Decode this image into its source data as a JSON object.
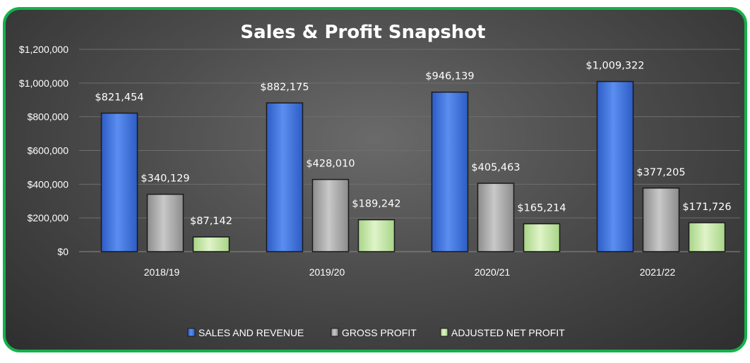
{
  "chart_data": {
    "type": "bar",
    "title": "Sales & Profit Snapshot",
    "categories": [
      "2018/19",
      "2019/20",
      "2020/21",
      "2021/22"
    ],
    "series": [
      {
        "name": "SALES AND REVENUE",
        "color": "#3a6fd8",
        "values": [
          821454,
          882175,
          946139,
          1009322
        ],
        "labels": [
          "$821,454",
          "$882,175",
          "$946,139",
          "$1,009,322"
        ]
      },
      {
        "name": "GROSS PROFIT",
        "color": "#a9a9a9",
        "values": [
          340129,
          428010,
          405463,
          377205
        ],
        "labels": [
          "$340,129",
          "$428,010",
          "$405,463",
          "$377,205"
        ]
      },
      {
        "name": "ADJUSTED NET PROFIT",
        "color": "#c4e6a4",
        "values": [
          87142,
          189242,
          165214,
          171726
        ],
        "labels": [
          "$87,142",
          "$189,242",
          "$165,214",
          "$171,726"
        ]
      }
    ],
    "yticks": [
      0,
      200000,
      400000,
      600000,
      800000,
      1000000,
      1200000
    ],
    "ytick_labels": [
      "$0",
      "$200,000",
      "$400,000",
      "$600,000",
      "$800,000",
      "$1,000,000",
      "$1,200,000"
    ],
    "ylim": [
      0,
      1200000
    ],
    "grid": true,
    "legend_position": "bottom"
  },
  "colors": {
    "border": "#14b14a",
    "gridline": "#6e6e6e"
  }
}
